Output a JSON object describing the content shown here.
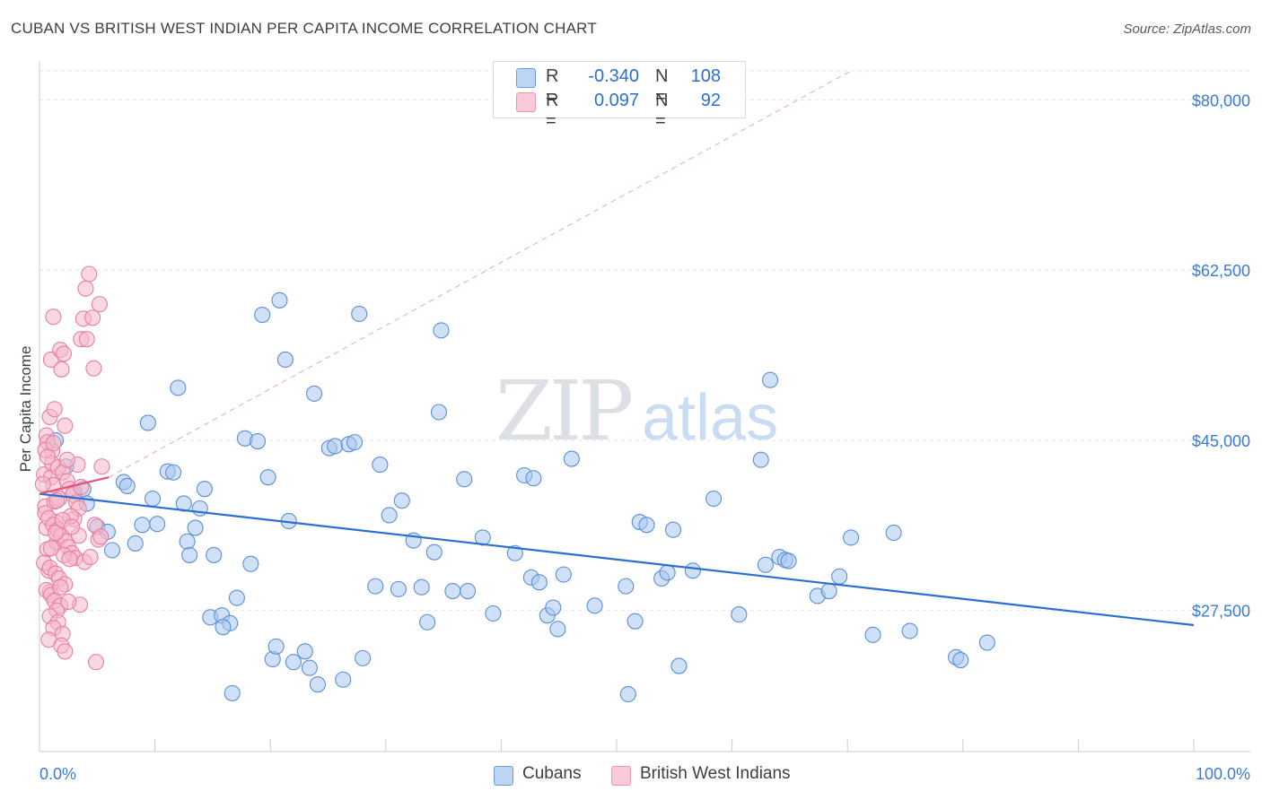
{
  "title": "CUBAN VS BRITISH WEST INDIAN PER CAPITA INCOME CORRELATION CHART",
  "source": "Source: ZipAtlas.com",
  "watermark": {
    "zip": "ZIP",
    "atlas": "atlas"
  },
  "colors": {
    "blue_fill": "#a9c8f0",
    "blue_stroke": "#5b8fd6",
    "blue_line": "#2b6fd1",
    "pink_fill": "#f5b8cb",
    "pink_stroke": "#e87fa0",
    "pink_line": "#e0527f",
    "axis_label": "#3a7bd5",
    "grid": "#e3e6ea"
  },
  "legend": {
    "rows": [
      {
        "r_label": "R =",
        "r_value": "-0.340",
        "n_label": "N =",
        "n_value": "108"
      },
      {
        "r_label": "R =",
        "r_value": "0.097",
        "n_label": "N =",
        "n_value": "92"
      }
    ],
    "bottom": [
      "Cubans",
      "British West Indians"
    ]
  },
  "chart_data": {
    "type": "scatter",
    "title": "CUBAN VS BRITISH WEST INDIAN PER CAPITA INCOME CORRELATION CHART",
    "xlabel": "",
    "ylabel": "Per Capita Income",
    "xlim": [
      0,
      100
    ],
    "ylim": [
      13000,
      84000
    ],
    "x_tick_labels": [
      "0.0%",
      "100.0%"
    ],
    "y_ticks": [
      27500,
      45000,
      62500,
      80000
    ],
    "y_tick_labels": [
      "$27,500",
      "$45,000",
      "$62,500",
      "$80,000"
    ],
    "grid": true,
    "legend_position": "top-center",
    "series": [
      {
        "name": "Cubans",
        "color": "blue",
        "trend": {
          "x": [
            0,
            100
          ],
          "y": [
            39500,
            26000
          ]
        },
        "points": [
          [
            1.4,
            45000
          ],
          [
            2.3,
            42300
          ],
          [
            3.8,
            40000
          ],
          [
            4.1,
            38500
          ],
          [
            5.0,
            36100
          ],
          [
            5.9,
            35600
          ],
          [
            6.3,
            33700
          ],
          [
            7.3,
            40700
          ],
          [
            7.6,
            40300
          ],
          [
            8.3,
            34400
          ],
          [
            8.9,
            36300
          ],
          [
            9.4,
            46800
          ],
          [
            9.8,
            39000
          ],
          [
            10.2,
            36400
          ],
          [
            11.1,
            41800
          ],
          [
            11.6,
            41700
          ],
          [
            12.0,
            50400
          ],
          [
            12.5,
            38500
          ],
          [
            12.8,
            34600
          ],
          [
            13.0,
            33200
          ],
          [
            13.5,
            36000
          ],
          [
            13.9,
            38000
          ],
          [
            14.3,
            40000
          ],
          [
            14.8,
            26800
          ],
          [
            15.1,
            33200
          ],
          [
            15.8,
            27000
          ],
          [
            16.5,
            26200
          ],
          [
            16.7,
            19000
          ],
          [
            17.1,
            28800
          ],
          [
            17.8,
            45200
          ],
          [
            18.3,
            32300
          ],
          [
            18.9,
            44900
          ],
          [
            19.3,
            57900
          ],
          [
            19.8,
            41200
          ],
          [
            20.2,
            22500
          ],
          [
            20.8,
            59400
          ],
          [
            21.3,
            53300
          ],
          [
            21.6,
            36700
          ],
          [
            22.0,
            22200
          ],
          [
            23.0,
            23300
          ],
          [
            23.4,
            21600
          ],
          [
            23.8,
            49800
          ],
          [
            24.1,
            19900
          ],
          [
            25.1,
            44200
          ],
          [
            25.6,
            44400
          ],
          [
            26.3,
            20400
          ],
          [
            26.8,
            44600
          ],
          [
            27.3,
            44800
          ],
          [
            27.7,
            58000
          ],
          [
            28.0,
            22600
          ],
          [
            29.1,
            30000
          ],
          [
            29.5,
            42500
          ],
          [
            30.3,
            37300
          ],
          [
            31.1,
            29700
          ],
          [
            31.4,
            38800
          ],
          [
            32.4,
            34700
          ],
          [
            33.1,
            29900
          ],
          [
            33.6,
            26300
          ],
          [
            34.2,
            33500
          ],
          [
            34.6,
            47900
          ],
          [
            34.8,
            56300
          ],
          [
            35.8,
            29500
          ],
          [
            36.8,
            41000
          ],
          [
            37.1,
            29500
          ],
          [
            39.3,
            27200
          ],
          [
            42.0,
            41400
          ],
          [
            42.6,
            30900
          ],
          [
            42.8,
            41100
          ],
          [
            43.3,
            30400
          ],
          [
            44.0,
            27000
          ],
          [
            44.5,
            27800
          ],
          [
            44.9,
            25600
          ],
          [
            45.4,
            31200
          ],
          [
            46.1,
            43100
          ],
          [
            48.1,
            28000
          ],
          [
            50.8,
            30000
          ],
          [
            51.6,
            26400
          ],
          [
            52.0,
            36600
          ],
          [
            52.6,
            36300
          ],
          [
            53.9,
            30800
          ],
          [
            54.4,
            31400
          ],
          [
            55.4,
            21800
          ],
          [
            56.6,
            31600
          ],
          [
            58.4,
            39000
          ],
          [
            60.6,
            27100
          ],
          [
            62.5,
            43000
          ],
          [
            62.9,
            32200
          ],
          [
            63.3,
            51200
          ],
          [
            64.1,
            33000
          ],
          [
            64.6,
            32700
          ],
          [
            64.9,
            32600
          ],
          [
            67.4,
            29000
          ],
          [
            68.4,
            29500
          ],
          [
            69.3,
            31000
          ],
          [
            70.3,
            35000
          ],
          [
            72.2,
            25000
          ],
          [
            75.4,
            25400
          ],
          [
            79.4,
            22700
          ],
          [
            79.8,
            22400
          ],
          [
            82.1,
            24200
          ],
          [
            54.9,
            35800
          ],
          [
            74.0,
            35500
          ],
          [
            38.4,
            35000
          ],
          [
            41.2,
            33400
          ],
          [
            3.0,
            39700
          ],
          [
            15.9,
            25800
          ],
          [
            20.5,
            23800
          ],
          [
            51.0,
            18900
          ]
        ]
      },
      {
        "name": "British West Indians",
        "color": "pink",
        "trend": {
          "x": [
            0,
            6
          ],
          "y": [
            39500,
            41200
          ]
        },
        "points": [
          [
            0.4,
            41500
          ],
          [
            0.5,
            38200
          ],
          [
            0.6,
            36000
          ],
          [
            0.7,
            33800
          ],
          [
            0.8,
            31600
          ],
          [
            0.9,
            29400
          ],
          [
            1.0,
            41200
          ],
          [
            1.1,
            43900
          ],
          [
            1.2,
            40400
          ],
          [
            1.3,
            38700
          ],
          [
            1.4,
            36600
          ],
          [
            1.5,
            34500
          ],
          [
            1.0,
            53300
          ],
          [
            1.2,
            57700
          ],
          [
            0.9,
            47400
          ],
          [
            1.3,
            48200
          ],
          [
            1.8,
            54300
          ],
          [
            2.1,
            53900
          ],
          [
            1.9,
            52300
          ],
          [
            2.2,
            46500
          ],
          [
            0.6,
            45500
          ],
          [
            0.7,
            44800
          ],
          [
            1.1,
            42600
          ],
          [
            1.6,
            42200
          ],
          [
            2.0,
            41700
          ],
          [
            2.4,
            40800
          ],
          [
            2.6,
            40000
          ],
          [
            2.9,
            39400
          ],
          [
            3.2,
            38600
          ],
          [
            3.4,
            38000
          ],
          [
            0.5,
            37500
          ],
          [
            0.8,
            37000
          ],
          [
            1.2,
            36300
          ],
          [
            1.6,
            35800
          ],
          [
            1.9,
            35200
          ],
          [
            2.3,
            34600
          ],
          [
            2.5,
            34000
          ],
          [
            2.8,
            33400
          ],
          [
            3.1,
            32900
          ],
          [
            0.4,
            32400
          ],
          [
            0.9,
            31900
          ],
          [
            1.4,
            31300
          ],
          [
            1.7,
            30800
          ],
          [
            2.2,
            30200
          ],
          [
            0.6,
            29600
          ],
          [
            1.0,
            29100
          ],
          [
            1.3,
            28500
          ],
          [
            1.8,
            28000
          ],
          [
            3.5,
            28100
          ],
          [
            1.5,
            27500
          ],
          [
            0.9,
            26900
          ],
          [
            1.6,
            26300
          ],
          [
            1.2,
            25700
          ],
          [
            2.0,
            25100
          ],
          [
            0.8,
            24500
          ],
          [
            1.9,
            23900
          ],
          [
            2.2,
            23300
          ],
          [
            4.3,
            62100
          ],
          [
            3.8,
            57500
          ],
          [
            3.6,
            55400
          ],
          [
            4.0,
            60600
          ],
          [
            4.1,
            55400
          ],
          [
            4.6,
            57600
          ],
          [
            5.2,
            59000
          ],
          [
            4.7,
            52400
          ],
          [
            5.4,
            42300
          ],
          [
            3.4,
            35200
          ],
          [
            5.1,
            34800
          ],
          [
            4.8,
            36300
          ],
          [
            5.3,
            35100
          ],
          [
            3.0,
            36900
          ],
          [
            2.7,
            37200
          ],
          [
            3.3,
            42500
          ],
          [
            2.4,
            43000
          ],
          [
            1.7,
            39000
          ],
          [
            0.3,
            40500
          ],
          [
            0.5,
            44000
          ],
          [
            0.7,
            43300
          ],
          [
            1.2,
            44700
          ],
          [
            1.5,
            38800
          ],
          [
            2.1,
            33200
          ],
          [
            2.6,
            32800
          ],
          [
            3.9,
            32500
          ],
          [
            4.4,
            33000
          ],
          [
            1.0,
            33900
          ],
          [
            1.4,
            35500
          ],
          [
            2.0,
            36800
          ],
          [
            2.8,
            36100
          ],
          [
            3.6,
            40200
          ],
          [
            4.9,
            22200
          ],
          [
            2.5,
            28400
          ],
          [
            1.8,
            29900
          ]
        ]
      }
    ]
  }
}
